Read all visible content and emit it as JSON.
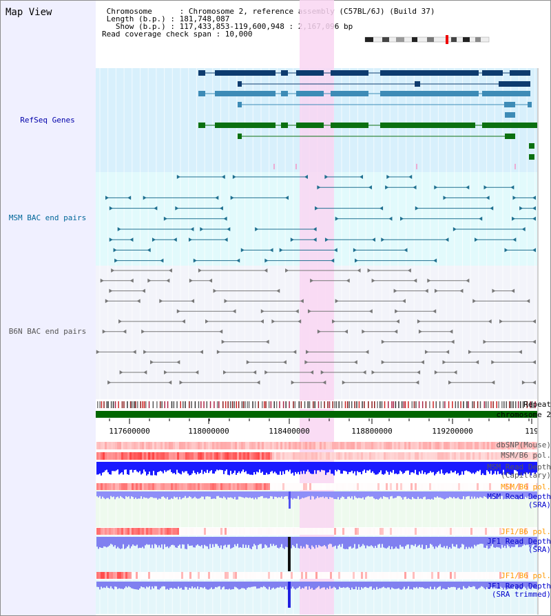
{
  "map_view": {
    "title": "Map View"
  },
  "info": {
    "chromosome_line": " Chromosome      : Chromosome 2, reference assembly (C57BL/6J) (Build 37)",
    "length_line": " Length (b.p.) : 181,748,087",
    "show_line": "   Show (b.p.) : 117,433,853-119,600,948 : 2,167,096 bp",
    "coverage_line": "Read coverage check span : 10,000"
  },
  "tracks": {
    "refseq": "RefSeq Genes",
    "msm_bac": "MSM BAC end pairs",
    "b6n_bac": "B6N BAC end pairs",
    "repeat": "Repeat",
    "chromosome": "chromosome 2",
    "dbsnp": "dbSNP(Mouse)",
    "msm_b6_pol_1": "MSM/B6 pol.",
    "msm_depth_cap": "MSM Read Depth\n(Capillary)",
    "msm_b6_pol_2": "MSM/B6 pol.",
    "msm_depth_sra": "MSM Read Depth\n(SRA)",
    "jf1_b6_pol_1": "JF1/B6 pol.",
    "jf1_depth_sra": "JF1 Read Depth\n(SRA)",
    "jf1_b6_pol_2": "JF1/B6 pol.",
    "jf1_depth_trim": "JF1 Read Depth\n(SRA trimmed)"
  },
  "axis": {
    "ticks": [
      "117600000",
      "118000000",
      "118400000",
      "118800000",
      "119200000",
      "119"
    ]
  },
  "colors": {
    "refseq_bg": "#d8f0fc",
    "msm_bg": "#e2fafc",
    "b6n_bg": "#f3f4fa",
    "highlight": "#f9d6f2",
    "refseq_label": "#0000aa",
    "msm_label": "#006699",
    "b6n_label": "#555555",
    "pol_label_orange": "#ff9900",
    "depth_label_blue": "#0000cc",
    "chromosome_bar": "#006600"
  }
}
